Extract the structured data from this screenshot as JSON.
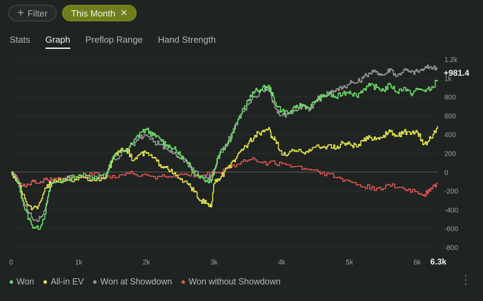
{
  "filter_bar": {
    "filter_label": "Filter",
    "active_chip_label": "This Month"
  },
  "tabs": [
    {
      "label": "Stats",
      "active": false
    },
    {
      "label": "Graph",
      "active": true
    },
    {
      "label": "Preflop Range",
      "active": false
    },
    {
      "label": "Hand Strength",
      "active": false
    }
  ],
  "chart_data": {
    "type": "line",
    "x_ticks": [
      "0",
      "1k",
      "2k",
      "3k",
      "4k",
      "5k",
      "6k"
    ],
    "x_end_label": "6.3k",
    "y_ticks": [
      "1.2k",
      "1k",
      "800",
      "600",
      "400",
      "200",
      "0",
      "-200",
      "-400",
      "-600",
      "-800"
    ],
    "y_tick_values": [
      1200,
      1000,
      800,
      600,
      400,
      200,
      0,
      -200,
      -400,
      -600,
      -800
    ],
    "ylim": [
      -800,
      1200
    ],
    "xlim": [
      0,
      6300
    ],
    "current_value_label": "+981.4",
    "legend_position": "bottom-left",
    "series": [
      {
        "name": "Won",
        "color": "#6fe36a",
        "points": [
          [
            0,
            0
          ],
          [
            100,
            -100
          ],
          [
            200,
            -400
          ],
          [
            300,
            -560
          ],
          [
            400,
            -610
          ],
          [
            500,
            -450
          ],
          [
            550,
            -250
          ],
          [
            600,
            -110
          ],
          [
            800,
            -80
          ],
          [
            1000,
            -30
          ],
          [
            1200,
            -60
          ],
          [
            1400,
            -30
          ],
          [
            1500,
            160
          ],
          [
            1700,
            240
          ],
          [
            1800,
            310
          ],
          [
            1900,
            420
          ],
          [
            2000,
            450
          ],
          [
            2100,
            390
          ],
          [
            2200,
            350
          ],
          [
            2300,
            290
          ],
          [
            2400,
            250
          ],
          [
            2500,
            180
          ],
          [
            2600,
            100
          ],
          [
            2700,
            0
          ],
          [
            2800,
            -50
          ],
          [
            2900,
            -100
          ],
          [
            2960,
            -80
          ],
          [
            3000,
            0
          ],
          [
            3050,
            150
          ],
          [
            3100,
            240
          ],
          [
            3200,
            300
          ],
          [
            3300,
            460
          ],
          [
            3400,
            620
          ],
          [
            3500,
            770
          ],
          [
            3600,
            860
          ],
          [
            3700,
            880
          ],
          [
            3800,
            920
          ],
          [
            3850,
            850
          ],
          [
            3900,
            740
          ],
          [
            4000,
            650
          ],
          [
            4100,
            630
          ],
          [
            4200,
            680
          ],
          [
            4300,
            720
          ],
          [
            4400,
            680
          ],
          [
            4500,
            760
          ],
          [
            4600,
            800
          ],
          [
            4700,
            830
          ],
          [
            4800,
            790
          ],
          [
            4900,
            840
          ],
          [
            5000,
            860
          ],
          [
            5100,
            810
          ],
          [
            5200,
            880
          ],
          [
            5300,
            920
          ],
          [
            5400,
            900
          ],
          [
            5500,
            870
          ],
          [
            5600,
            930
          ],
          [
            5700,
            850
          ],
          [
            5800,
            900
          ],
          [
            5900,
            830
          ],
          [
            6000,
            880
          ],
          [
            6100,
            870
          ],
          [
            6200,
            880
          ],
          [
            6300,
            981.4
          ]
        ]
      },
      {
        "name": "All-in EV",
        "color": "#eeea55",
        "points": [
          [
            0,
            0
          ],
          [
            100,
            -120
          ],
          [
            200,
            -280
          ],
          [
            300,
            -400
          ],
          [
            400,
            -360
          ],
          [
            500,
            -170
          ],
          [
            600,
            -110
          ],
          [
            800,
            -90
          ],
          [
            1000,
            -60
          ],
          [
            1200,
            -80
          ],
          [
            1400,
            -60
          ],
          [
            1500,
            140
          ],
          [
            1600,
            210
          ],
          [
            1700,
            250
          ],
          [
            1800,
            120
          ],
          [
            1900,
            190
          ],
          [
            2000,
            200
          ],
          [
            2100,
            150
          ],
          [
            2200,
            80
          ],
          [
            2300,
            60
          ],
          [
            2400,
            -20
          ],
          [
            2500,
            -80
          ],
          [
            2600,
            -120
          ],
          [
            2700,
            -210
          ],
          [
            2800,
            -300
          ],
          [
            2900,
            -340
          ],
          [
            2960,
            -370
          ],
          [
            3000,
            -120
          ],
          [
            3100,
            -50
          ],
          [
            3200,
            50
          ],
          [
            3300,
            110
          ],
          [
            3400,
            240
          ],
          [
            3500,
            300
          ],
          [
            3600,
            390
          ],
          [
            3700,
            430
          ],
          [
            3800,
            460
          ],
          [
            3850,
            380
          ],
          [
            3900,
            340
          ],
          [
            4000,
            180
          ],
          [
            4100,
            200
          ],
          [
            4200,
            230
          ],
          [
            4300,
            210
          ],
          [
            4400,
            240
          ],
          [
            4500,
            270
          ],
          [
            4600,
            260
          ],
          [
            4700,
            290
          ],
          [
            4800,
            250
          ],
          [
            4900,
            310
          ],
          [
            5000,
            300
          ],
          [
            5100,
            270
          ],
          [
            5200,
            330
          ],
          [
            5300,
            370
          ],
          [
            5400,
            360
          ],
          [
            5500,
            390
          ],
          [
            5600,
            430
          ],
          [
            5700,
            380
          ],
          [
            5800,
            430
          ],
          [
            5900,
            400
          ],
          [
            6000,
            420
          ],
          [
            6100,
            300
          ],
          [
            6200,
            360
          ],
          [
            6300,
            490
          ]
        ]
      },
      {
        "name": "Won at Showdown",
        "color": "#999c99",
        "points": [
          [
            0,
            0
          ],
          [
            100,
            -90
          ],
          [
            200,
            -350
          ],
          [
            300,
            -480
          ],
          [
            400,
            -520
          ],
          [
            500,
            -400
          ],
          [
            550,
            -250
          ],
          [
            600,
            -120
          ],
          [
            800,
            -70
          ],
          [
            1000,
            -30
          ],
          [
            1200,
            -60
          ],
          [
            1400,
            -30
          ],
          [
            1500,
            140
          ],
          [
            1700,
            220
          ],
          [
            1800,
            290
          ],
          [
            1900,
            360
          ],
          [
            2000,
            390
          ],
          [
            2100,
            320
          ],
          [
            2200,
            290
          ],
          [
            2300,
            250
          ],
          [
            2400,
            200
          ],
          [
            2500,
            150
          ],
          [
            2600,
            90
          ],
          [
            2700,
            10
          ],
          [
            2800,
            -40
          ],
          [
            2900,
            -60
          ],
          [
            2960,
            -50
          ],
          [
            3000,
            30
          ],
          [
            3100,
            210
          ],
          [
            3200,
            320
          ],
          [
            3300,
            490
          ],
          [
            3400,
            620
          ],
          [
            3500,
            720
          ],
          [
            3600,
            800
          ],
          [
            3700,
            870
          ],
          [
            3800,
            900
          ],
          [
            3850,
            780
          ],
          [
            3900,
            680
          ],
          [
            4000,
            600
          ],
          [
            4100,
            620
          ],
          [
            4200,
            660
          ],
          [
            4300,
            700
          ],
          [
            4400,
            650
          ],
          [
            4500,
            760
          ],
          [
            4600,
            820
          ],
          [
            4700,
            850
          ],
          [
            4800,
            880
          ],
          [
            4900,
            900
          ],
          [
            5000,
            940
          ],
          [
            5100,
            950
          ],
          [
            5200,
            1000
          ],
          [
            5300,
            1050
          ],
          [
            5400,
            1070
          ],
          [
            5500,
            1030
          ],
          [
            5600,
            1100
          ],
          [
            5700,
            1020
          ],
          [
            5800,
            1090
          ],
          [
            5900,
            1060
          ],
          [
            6000,
            1070
          ],
          [
            6100,
            1100
          ],
          [
            6200,
            1120
          ],
          [
            6300,
            1100
          ]
        ]
      },
      {
        "name": "Won without Showdown",
        "color": "#e35a5a",
        "points": [
          [
            0,
            -10
          ],
          [
            100,
            -80
          ],
          [
            200,
            -150
          ],
          [
            300,
            -100
          ],
          [
            400,
            -120
          ],
          [
            500,
            -80
          ],
          [
            600,
            -90
          ],
          [
            800,
            -60
          ],
          [
            1000,
            -40
          ],
          [
            1200,
            -30
          ],
          [
            1400,
            -40
          ],
          [
            1600,
            -30
          ],
          [
            1800,
            -20
          ],
          [
            2000,
            -30
          ],
          [
            2200,
            -50
          ],
          [
            2400,
            -40
          ],
          [
            2600,
            -30
          ],
          [
            2800,
            -40
          ],
          [
            3000,
            -10
          ],
          [
            3200,
            40
          ],
          [
            3400,
            110
          ],
          [
            3600,
            130
          ],
          [
            3800,
            100
          ],
          [
            4000,
            90
          ],
          [
            4200,
            60
          ],
          [
            4400,
            30
          ],
          [
            4600,
            0
          ],
          [
            4800,
            -60
          ],
          [
            5000,
            -100
          ],
          [
            5200,
            -160
          ],
          [
            5400,
            -170
          ],
          [
            5600,
            -150
          ],
          [
            5800,
            -180
          ],
          [
            6000,
            -210
          ],
          [
            6100,
            -240
          ],
          [
            6200,
            -170
          ],
          [
            6300,
            -120
          ]
        ]
      }
    ]
  }
}
